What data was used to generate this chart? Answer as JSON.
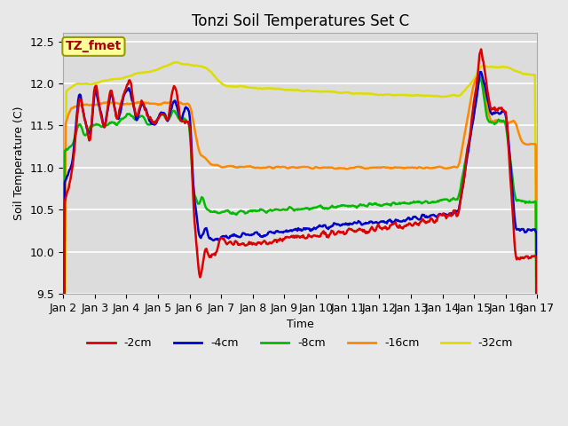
{
  "title": "Tonzi Soil Temperatures Set C",
  "xlabel": "Time",
  "ylabel": "Soil Temperature (C)",
  "ylim": [
    9.5,
    12.6
  ],
  "xlim": [
    0,
    15
  ],
  "xtick_labels": [
    "Jan 2",
    "Jan 3",
    "Jan 4",
    "Jan 5",
    "Jan 6",
    "Jan 7",
    "Jan 8",
    "Jan 9",
    "Jan 10",
    "Jan 11",
    "Jan 12",
    "Jan 13",
    "Jan 14",
    "Jan 15",
    "Jan 16",
    "Jan 17"
  ],
  "legend_labels": [
    "-2cm",
    "-4cm",
    "-8cm",
    "-16cm",
    "-32cm"
  ],
  "colors": {
    "-2cm": "#dd0000",
    "-4cm": "#0000cc",
    "-8cm": "#00bb00",
    "-16cm": "#ff8800",
    "-32cm": "#dddd00"
  },
  "annotation_text": "TZ_fmet",
  "annotation_color": "#aa0000",
  "annotation_bg": "#ffff99",
  "annotation_edge": "#999900",
  "fig_bg": "#e8e8e8",
  "plot_bg": "#dcdcdc",
  "grid_color": "#ffffff"
}
